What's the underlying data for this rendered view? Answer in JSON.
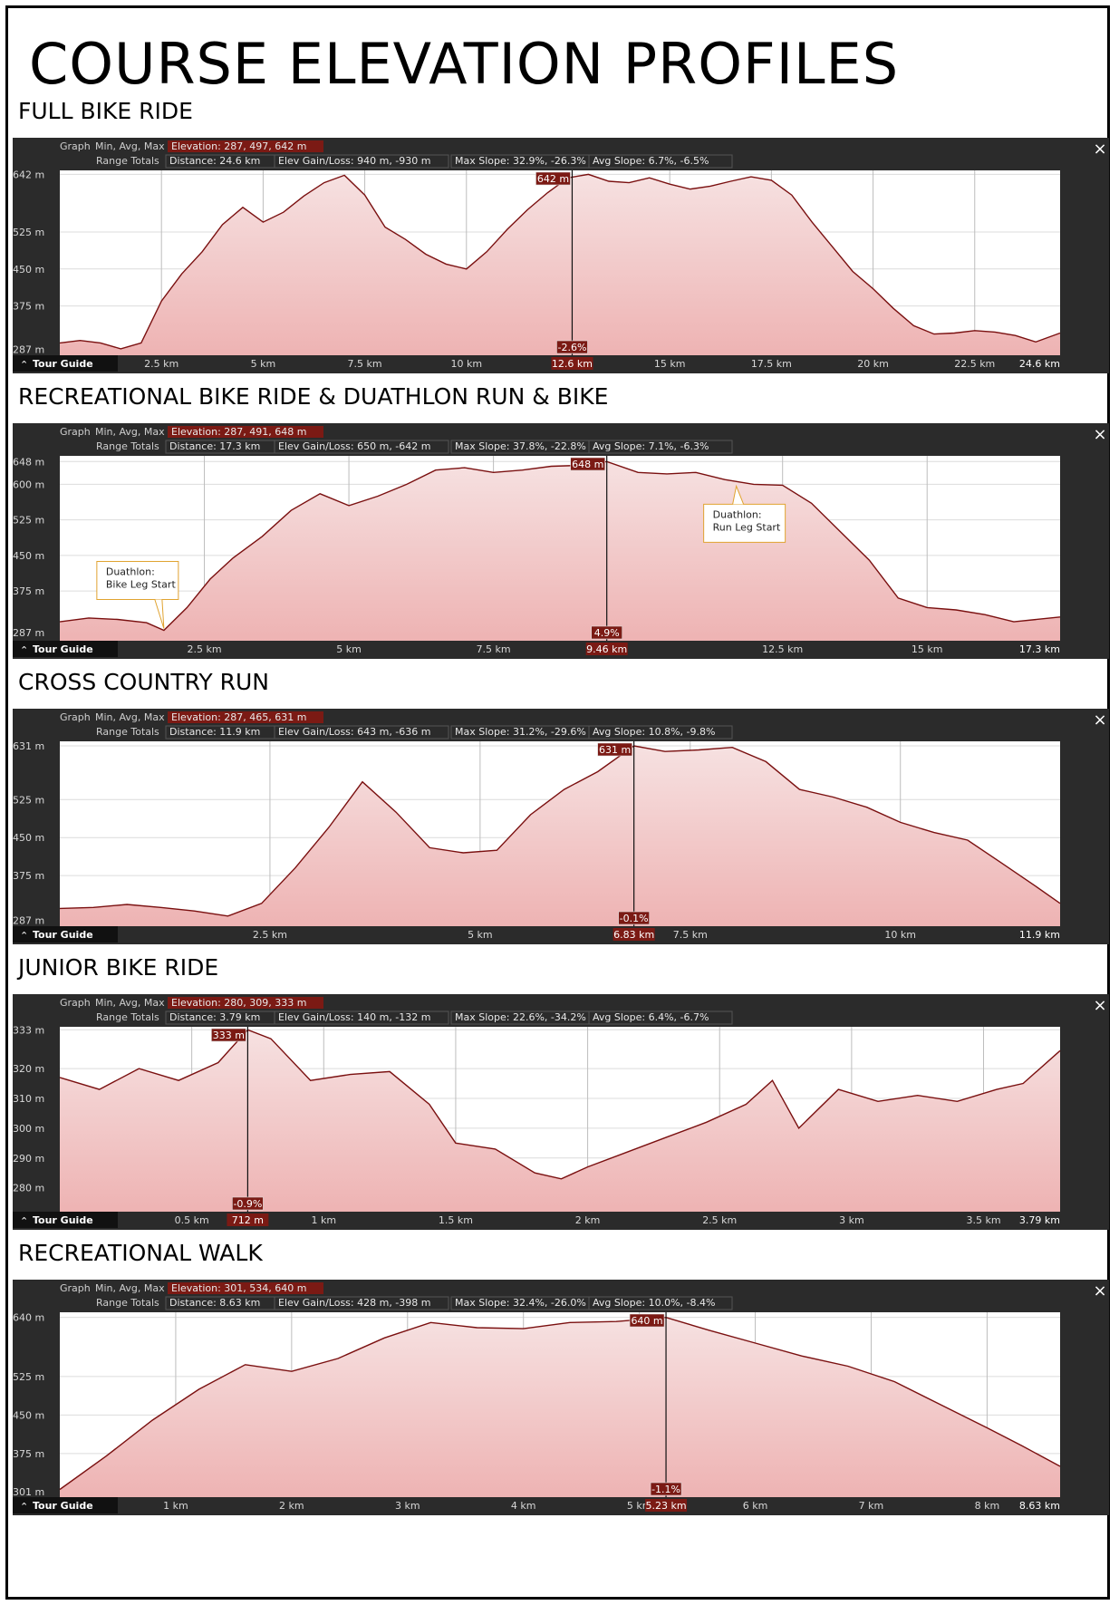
{
  "title": "COURSE ELEVATION PROFILES",
  "ui": {
    "graph_label": "Graph",
    "graph_mode": "Min, Avg, Max",
    "range_label": "Range Totals",
    "tour_guide": "Tour Guide",
    "close_symbol": "×"
  },
  "colors": {
    "panel_bg": "#2b2b2b",
    "line": "#7a1010",
    "fill_top": "#f6e1e1",
    "fill_bottom": "#eeb3b3",
    "badge": "#7b1a14"
  },
  "chart_data": [
    {
      "type": "area",
      "title": "FULL BIKE RIDE",
      "stats": {
        "elevation": "Elevation: 287, 497, 642 m",
        "distance": "Distance: 24.6 km",
        "gain_loss": "Elev Gain/Loss: 940 m, -930 m",
        "max_slope": "Max Slope: 32.9%, -26.3%",
        "avg_slope": "Avg Slope: 6.7%, -6.5%"
      },
      "ylim": [
        275,
        650
      ],
      "y_ticks": [
        287,
        375,
        450,
        525,
        642
      ],
      "y_tick_labels": [
        "287 m",
        "375 m",
        "450 m",
        "525 m",
        "642 m"
      ],
      "xlim": [
        0,
        24.6
      ],
      "x_ticks": [
        2.5,
        5,
        7.5,
        10,
        15,
        17.5,
        20,
        22.5
      ],
      "x_tick_labels": [
        "2.5 km",
        "5 km",
        "7.5 km",
        "10 km",
        "15 km",
        "17.5 km",
        "20 km",
        "22.5 km"
      ],
      "x_end_label": "24.6 km",
      "marker": {
        "x": 12.6,
        "x_label": "12.6 km",
        "elev_label": "642 m",
        "slope_label": "-2.6%"
      },
      "annotations": [],
      "x": [
        0,
        0.5,
        1,
        1.5,
        2,
        2.5,
        3,
        3.5,
        4,
        4.5,
        5,
        5.5,
        6,
        6.5,
        7,
        7.5,
        8,
        8.5,
        9,
        9.5,
        10,
        10.5,
        11,
        11.5,
        12,
        12.5,
        13,
        13.5,
        14,
        14.5,
        15,
        15.5,
        16,
        16.5,
        17,
        17.5,
        18,
        18.5,
        19,
        19.5,
        20,
        20.5,
        21,
        21.5,
        22,
        22.5,
        23,
        23.5,
        24,
        24.6
      ],
      "y": [
        300,
        305,
        300,
        288,
        300,
        385,
        440,
        485,
        540,
        575,
        545,
        565,
        598,
        625,
        640,
        600,
        535,
        510,
        480,
        460,
        450,
        485,
        530,
        570,
        605,
        635,
        642,
        628,
        625,
        635,
        622,
        612,
        618,
        628,
        637,
        630,
        600,
        545,
        495,
        445,
        410,
        370,
        335,
        318,
        320,
        325,
        322,
        315,
        302,
        320
      ]
    },
    {
      "type": "area",
      "title": "RECREATIONAL BIKE RIDE & DUATHLON RUN & BIKE",
      "stats": {
        "elevation": "Elevation: 287, 491, 648 m",
        "distance": "Distance: 17.3 km",
        "gain_loss": "Elev Gain/Loss: 650 m, -642 m",
        "max_slope": "Max Slope: 37.8%, -22.8%",
        "avg_slope": "Avg Slope: 7.1%, -6.3%"
      },
      "ylim": [
        270,
        660
      ],
      "y_ticks": [
        287,
        375,
        450,
        525,
        600,
        648
      ],
      "y_tick_labels": [
        "287 m",
        "375 m",
        "450 m",
        "525 m",
        "600 m",
        "648 m"
      ],
      "xlim": [
        0,
        17.3
      ],
      "x_ticks": [
        2.5,
        5,
        7.5,
        12.5,
        15
      ],
      "x_tick_labels": [
        "2.5 km",
        "5 km",
        "7.5 km",
        "12.5 km",
        "15 km"
      ],
      "x_end_label": "17.3 km",
      "marker": {
        "x": 9.46,
        "x_label": "9.46 km",
        "elev_label": "648 m",
        "slope_label": "4.9%"
      },
      "annotations": [
        {
          "text": [
            "Duathlon:",
            "Bike Leg Start"
          ],
          "x": 1.8
        },
        {
          "text": [
            "Duathlon:",
            "Run Leg Start"
          ],
          "x": 11.7
        }
      ],
      "x": [
        0,
        0.5,
        1,
        1.5,
        1.8,
        2.2,
        2.6,
        3,
        3.5,
        4,
        4.5,
        5,
        5.5,
        6,
        6.5,
        7,
        7.5,
        8,
        8.5,
        9,
        9.46,
        10,
        10.5,
        11,
        11.5,
        12,
        12.5,
        13,
        13.5,
        14,
        14.5,
        15,
        15.5,
        16,
        16.5,
        17.3
      ],
      "y": [
        310,
        318,
        315,
        308,
        292,
        340,
        400,
        445,
        490,
        545,
        580,
        555,
        575,
        600,
        630,
        635,
        625,
        630,
        638,
        640,
        648,
        625,
        622,
        625,
        610,
        600,
        598,
        560,
        500,
        440,
        360,
        340,
        335,
        325,
        310,
        320
      ]
    },
    {
      "type": "area",
      "title": "CROSS COUNTRY RUN",
      "stats": {
        "elevation": "Elevation: 287, 465, 631 m",
        "distance": "Distance: 11.9 km",
        "gain_loss": "Elev Gain/Loss: 643 m, -636 m",
        "max_slope": "Max Slope: 31.2%, -29.6%",
        "avg_slope": "Avg Slope: 10.8%, -9.8%"
      },
      "ylim": [
        275,
        640
      ],
      "y_ticks": [
        287,
        375,
        450,
        525,
        631
      ],
      "y_tick_labels": [
        "287 m",
        "375 m",
        "450 m",
        "525 m",
        "631 m"
      ],
      "xlim": [
        0,
        11.9
      ],
      "x_ticks": [
        2.5,
        5,
        7.5,
        10
      ],
      "x_tick_labels": [
        "2.5 km",
        "5 km",
        "7.5 km",
        "10 km"
      ],
      "x_end_label": "11.9 km",
      "marker": {
        "x": 6.83,
        "x_label": "6.83 km",
        "elev_label": "631 m",
        "slope_label": "-0.1%"
      },
      "annotations": [],
      "x": [
        0,
        0.4,
        0.8,
        1.2,
        1.6,
        2,
        2.4,
        2.8,
        3.2,
        3.6,
        4,
        4.4,
        4.8,
        5.2,
        5.6,
        6,
        6.4,
        6.83,
        7.2,
        7.6,
        8,
        8.4,
        8.8,
        9.2,
        9.6,
        10,
        10.4,
        10.8,
        11.2,
        11.6,
        11.9
      ],
      "y": [
        310,
        312,
        318,
        312,
        305,
        295,
        320,
        390,
        470,
        560,
        500,
        430,
        420,
        425,
        495,
        545,
        580,
        631,
        620,
        623,
        628,
        600,
        545,
        530,
        510,
        480,
        460,
        445,
        400,
        355,
        320
      ]
    },
    {
      "type": "area",
      "title": "JUNIOR BIKE RIDE",
      "stats": {
        "elevation": "Elevation: 280, 309, 333 m",
        "distance": "Distance: 3.79 km",
        "gain_loss": "Elev Gain/Loss: 140 m, -132 m",
        "max_slope": "Max Slope: 22.6%, -34.2%",
        "avg_slope": "Avg Slope: 6.4%, -6.7%"
      },
      "ylim": [
        272,
        334
      ],
      "y_ticks": [
        280,
        290,
        300,
        310,
        320,
        333
      ],
      "y_tick_labels": [
        "280 m",
        "290 m",
        "300 m",
        "310 m",
        "320 m",
        "333 m"
      ],
      "xlim": [
        0,
        3.79
      ],
      "x_ticks": [
        0.5,
        1,
        1.5,
        2,
        2.5,
        3,
        3.5
      ],
      "x_tick_labels": [
        "0.5 km",
        "1 km",
        "1.5 km",
        "2 km",
        "2.5 km",
        "3 km",
        "3.5 km"
      ],
      "x_end_label": "3.79 km",
      "marker": {
        "x": 0.712,
        "x_label": "712 m",
        "elev_label": "333 m",
        "slope_label": "-0.9%"
      },
      "annotations": [],
      "x": [
        0,
        0.15,
        0.3,
        0.45,
        0.6,
        0.712,
        0.8,
        0.95,
        1.1,
        1.25,
        1.4,
        1.5,
        1.65,
        1.8,
        1.9,
        2,
        2.15,
        2.3,
        2.45,
        2.6,
        2.7,
        2.8,
        2.95,
        3.1,
        3.25,
        3.4,
        3.55,
        3.65,
        3.79
      ],
      "y": [
        317,
        313,
        320,
        316,
        322,
        333,
        330,
        316,
        318,
        319,
        308,
        295,
        293,
        285,
        283,
        287,
        292,
        297,
        302,
        308,
        316,
        300,
        313,
        309,
        311,
        309,
        313,
        315,
        326
      ]
    },
    {
      "type": "area",
      "title": "RECREATIONAL WALK",
      "stats": {
        "elevation": "Elevation: 301, 534, 640 m",
        "distance": "Distance: 8.63 km",
        "gain_loss": "Elev Gain/Loss: 428 m, -398 m",
        "max_slope": "Max Slope: 32.4%, -26.0%",
        "avg_slope": "Avg Slope: 10.0%, -8.4%"
      },
      "ylim": [
        290,
        650
      ],
      "y_ticks": [
        301,
        375,
        450,
        525,
        640
      ],
      "y_tick_labels": [
        "301 m",
        "375 m",
        "450 m",
        "525 m",
        "640 m"
      ],
      "xlim": [
        0,
        8.63
      ],
      "x_ticks": [
        1,
        2,
        3,
        4,
        5,
        6,
        7,
        8
      ],
      "x_tick_labels": [
        "1 km",
        "2 km",
        "3 km",
        "4 km",
        "5 km",
        "6 km",
        "7 km",
        "8 km"
      ],
      "x_end_label": "8.63 km",
      "marker": {
        "x": 5.23,
        "x_label": "5.23 km",
        "elev_label": "640 m",
        "slope_label": "-1.1%"
      },
      "annotations": [],
      "x": [
        0,
        0.4,
        0.8,
        1.2,
        1.6,
        2,
        2.4,
        2.8,
        3.2,
        3.6,
        4,
        4.4,
        4.8,
        5.23,
        5.6,
        6,
        6.4,
        6.8,
        7.2,
        7.6,
        8,
        8.3,
        8.63
      ],
      "y": [
        305,
        370,
        440,
        500,
        548,
        535,
        560,
        600,
        630,
        620,
        618,
        630,
        632,
        640,
        615,
        590,
        565,
        545,
        515,
        470,
        425,
        390,
        350
      ]
    }
  ]
}
